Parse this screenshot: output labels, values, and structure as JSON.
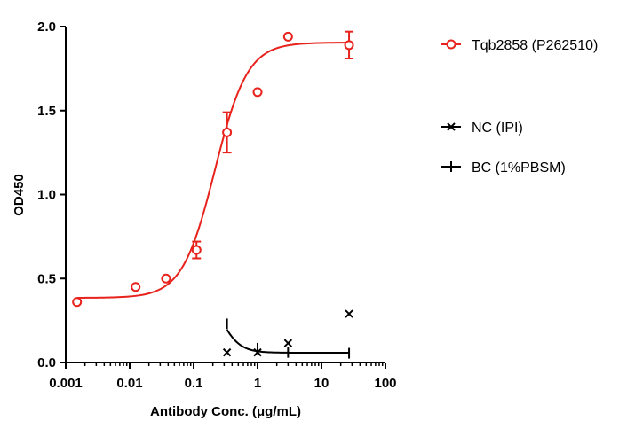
{
  "chart_data": {
    "type": "scatter",
    "xlabel": "Antibody Conc. (μg/mL)",
    "ylabel": "OD450",
    "xscale": "log",
    "xlim": [
      0.001,
      100
    ],
    "ylim": [
      0,
      2.0
    ],
    "x_ticks": [
      "0.001",
      "0.01",
      "0.1",
      "1",
      "10",
      "100"
    ],
    "y_ticks": [
      "0.0",
      "0.5",
      "1.0",
      "1.5",
      "2.0"
    ],
    "legend_position": "right",
    "series": [
      {
        "name": "Tqb2858 (P262510)",
        "color": "#e8221c",
        "marker": "circle",
        "x": [
          0.0015,
          0.0124,
          0.037,
          0.111,
          0.333,
          1.0,
          3.0,
          27.0
        ],
        "y": [
          0.36,
          0.45,
          0.5,
          0.67,
          1.37,
          1.61,
          1.94,
          1.89
        ],
        "error": [
          0,
          0,
          0,
          0.05,
          0.12,
          0,
          0,
          0.08
        ],
        "fit": {
          "bottom": 0.385,
          "top": 1.905,
          "ec50": 0.215,
          "hill": 1.7
        }
      },
      {
        "name": "NC (IPI)",
        "color": "#000000",
        "marker": "x",
        "x": [
          0.333,
          1.0,
          3.0,
          27.0
        ],
        "y": [
          0.06,
          0.06,
          0.115,
          0.29
        ]
      },
      {
        "name": "BC (1%PBSM)",
        "color": "#000000",
        "marker": "plus",
        "x": [
          0.333,
          1.0,
          3.0,
          27.0
        ],
        "y": [
          0.23,
          0.085,
          0.06,
          0.055
        ],
        "fit": {
          "bottom": 0.058,
          "top": 0.5,
          "ec50": 0.25,
          "hill": -2.8
        }
      }
    ]
  }
}
